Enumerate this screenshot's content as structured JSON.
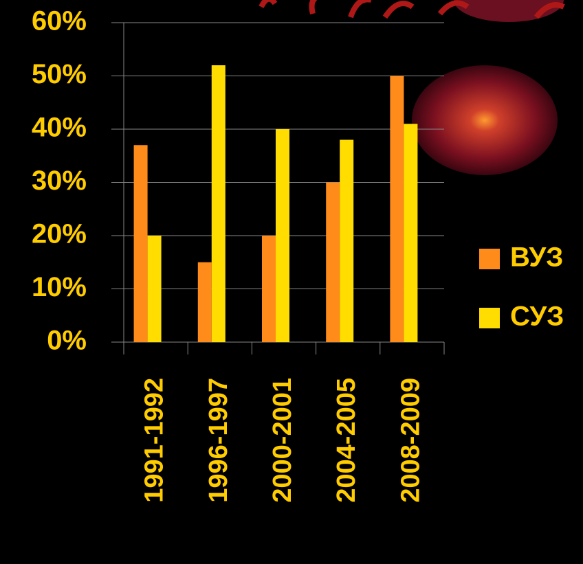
{
  "chart_data": {
    "type": "bar",
    "categories": [
      "1991-1992",
      "1996-1997",
      "2000-2001",
      "2004-2005",
      "2008-2009"
    ],
    "series": [
      {
        "name": "ВУЗ",
        "color": "#ff8c1a",
        "values": [
          37,
          15,
          20,
          30,
          50
        ]
      },
      {
        "name": "СУЗ",
        "color": "#ffdd00",
        "values": [
          20,
          52,
          40,
          38,
          41
        ]
      }
    ],
    "ylim": [
      0,
      60
    ],
    "yticks": [
      {
        "value": 0,
        "label": "0%"
      },
      {
        "value": 10,
        "label": "10%"
      },
      {
        "value": 20,
        "label": "20%"
      },
      {
        "value": 30,
        "label": "30%"
      },
      {
        "value": 40,
        "label": "40%"
      },
      {
        "value": 50,
        "label": "50%"
      },
      {
        "value": 60,
        "label": "60%"
      }
    ],
    "grid": true,
    "legend": "right"
  }
}
